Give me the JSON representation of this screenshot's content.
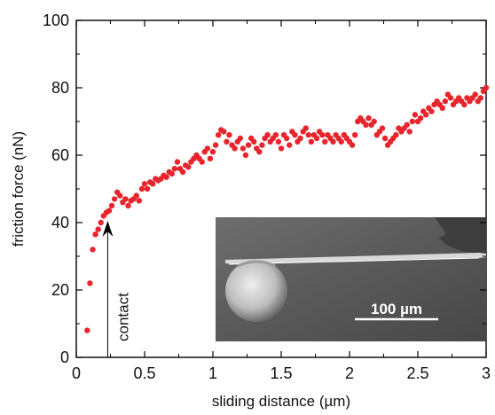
{
  "chart_data": {
    "type": "scatter",
    "xlabel": "sliding distance (µm)",
    "ylabel": "friction force (nN)",
    "xlim": [
      0,
      3
    ],
    "ylim": [
      0,
      100
    ],
    "xticks": [
      0,
      0.5,
      1,
      1.5,
      2,
      2.5,
      3
    ],
    "xtick_labels": [
      "0",
      "0.5",
      "1",
      "1.5",
      "2",
      "2.5",
      "3"
    ],
    "yticks": [
      0,
      20,
      40,
      60,
      80,
      100
    ],
    "ytick_labels": [
      "0",
      "20",
      "40",
      "60",
      "80",
      "100"
    ],
    "grid": false,
    "legend": "none",
    "marker_color": "#e8242c",
    "annotation": {
      "text": "contact",
      "x": 0.23,
      "y_from": 0,
      "y_to": 40
    },
    "inset": {
      "scale_bar_label": "100 µm",
      "placement": "bottom-right"
    },
    "x": [
      0.08,
      0.1,
      0.12,
      0.14,
      0.16,
      0.18,
      0.2,
      0.22,
      0.24,
      0.26,
      0.28,
      0.3,
      0.32,
      0.34,
      0.36,
      0.38,
      0.4,
      0.42,
      0.44,
      0.46,
      0.48,
      0.5,
      0.52,
      0.54,
      0.56,
      0.58,
      0.6,
      0.62,
      0.64,
      0.66,
      0.68,
      0.7,
      0.72,
      0.74,
      0.76,
      0.78,
      0.8,
      0.82,
      0.84,
      0.86,
      0.88,
      0.9,
      0.92,
      0.94,
      0.96,
      0.98,
      1.0,
      1.02,
      1.04,
      1.06,
      1.08,
      1.1,
      1.12,
      1.14,
      1.16,
      1.18,
      1.2,
      1.22,
      1.24,
      1.26,
      1.28,
      1.3,
      1.32,
      1.34,
      1.36,
      1.38,
      1.4,
      1.42,
      1.44,
      1.46,
      1.48,
      1.5,
      1.52,
      1.54,
      1.56,
      1.58,
      1.6,
      1.62,
      1.64,
      1.66,
      1.68,
      1.7,
      1.72,
      1.74,
      1.76,
      1.78,
      1.8,
      1.82,
      1.84,
      1.86,
      1.88,
      1.9,
      1.92,
      1.94,
      1.96,
      1.98,
      2.0,
      2.02,
      2.04,
      2.06,
      2.08,
      2.1,
      2.12,
      2.14,
      2.16,
      2.18,
      2.2,
      2.22,
      2.24,
      2.26,
      2.28,
      2.3,
      2.32,
      2.34,
      2.36,
      2.38,
      2.4,
      2.42,
      2.44,
      2.46,
      2.48,
      2.5,
      2.52,
      2.54,
      2.56,
      2.58,
      2.6,
      2.62,
      2.64,
      2.66,
      2.68,
      2.7,
      2.72,
      2.74,
      2.76,
      2.78,
      2.8,
      2.82,
      2.84,
      2.86,
      2.88,
      2.9,
      2.92,
      2.94,
      2.96,
      2.98,
      3.0
    ],
    "y": [
      8,
      22,
      32,
      36.5,
      38,
      40,
      42,
      43,
      43.5,
      45,
      47,
      49,
      48,
      46,
      47,
      45,
      46.5,
      47,
      48,
      46.5,
      50,
      51.5,
      50,
      52,
      51.5,
      53,
      52.5,
      53,
      54,
      53.5,
      55,
      54.5,
      56,
      58,
      56,
      55,
      57,
      56.5,
      58,
      59,
      60,
      59,
      58,
      61,
      62,
      59,
      61,
      63,
      66,
      67.5,
      67,
      64,
      66,
      63,
      62,
      64,
      65,
      62,
      60,
      63,
      65,
      64,
      62,
      61,
      63,
      65,
      66,
      64,
      65,
      66,
      64,
      62,
      66,
      65,
      63,
      67,
      66,
      64,
      65,
      67,
      68,
      66,
      64,
      66,
      65,
      67,
      66,
      64,
      66,
      65,
      64,
      66,
      65,
      64,
      66,
      65,
      64,
      63,
      66,
      70,
      71,
      70,
      69,
      71,
      69,
      70,
      66,
      67,
      68,
      65,
      63,
      64,
      65,
      66,
      68,
      67,
      68,
      69,
      67,
      70,
      72,
      70,
      71,
      73,
      72,
      74,
      73,
      75,
      76,
      75,
      74,
      76,
      78,
      77,
      75,
      76,
      77,
      76,
      75,
      77,
      76,
      77,
      78,
      76,
      77,
      79,
      80
    ]
  }
}
